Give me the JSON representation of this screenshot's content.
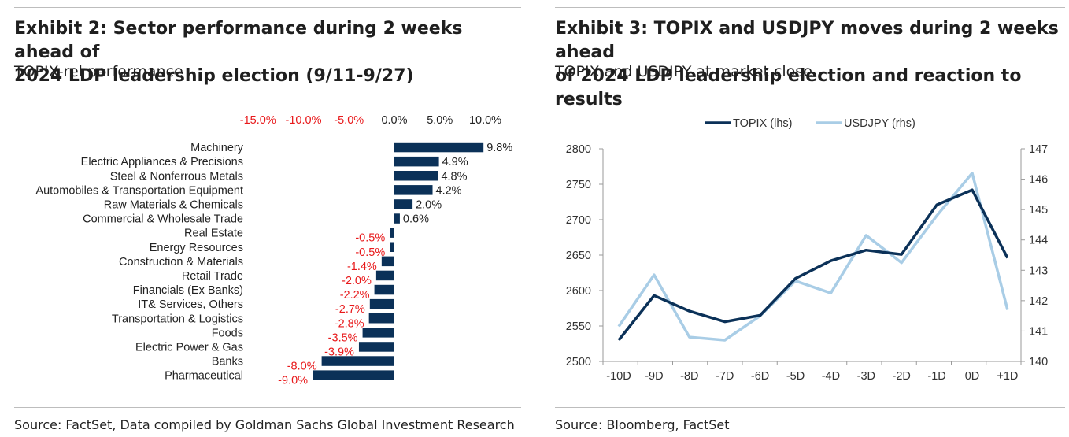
{
  "left": {
    "title_line1": "Exhibit 2: Sector performance during 2 weeks ahead of",
    "title_line2": "2024 LDP leadership election (9/11-9/27)",
    "subtitle": "TOPIX-rel performance",
    "source": "Source: FactSet, Data compiled by Goldman Sachs Global Investment Research"
  },
  "right": {
    "title_line1": "Exhibit 3: TOPIX and USDJPY moves during 2 weeks ahead",
    "title_line2": "of 2024 LDP leadership election and reaction to results",
    "subtitle": "TOPIX and USDJPY at market close",
    "source": "Source: Bloomberg, FactSet"
  },
  "colors": {
    "navy": "#0b3158",
    "light_blue": "#a9cde6",
    "negative_label": "#e8191b"
  },
  "chart_data": [
    {
      "type": "bar",
      "orientation": "horizontal",
      "title": "Exhibit 2: Sector performance during 2 weeks ahead of 2024 LDP leadership election (9/11-9/27)",
      "subtitle": "TOPIX-rel performance",
      "xlim": [
        -15,
        10
      ],
      "xticks": [
        -15,
        -10,
        -5,
        0,
        5,
        10
      ],
      "xtick_labels": [
        "-15.0%",
        "-10.0%",
        "-5.0%",
        "0.0%",
        "5.0%",
        "10.0%"
      ],
      "categories": [
        "Machinery",
        "Electric Appliances & Precisions",
        "Steel & Nonferrous Metals",
        "Automobiles & Transportation Equipment",
        "Raw Materials & Chemicals",
        "Commercial & Wholesale Trade",
        "Real Estate",
        "Energy Resources",
        "Construction & Materials",
        "Retail Trade",
        "Financials (Ex Banks)",
        "IT& Services, Others",
        "Transportation & Logistics",
        "Foods",
        "Electric Power & Gas",
        "Banks",
        "Pharmaceutical"
      ],
      "values": [
        9.8,
        4.9,
        4.8,
        4.2,
        2.0,
        0.6,
        -0.5,
        -0.5,
        -1.4,
        -2.0,
        -2.2,
        -2.7,
        -2.8,
        -3.5,
        -3.9,
        -8.0,
        -9.0
      ],
      "value_labels": [
        "9.8%",
        "4.9%",
        "4.8%",
        "4.2%",
        "2.0%",
        "0.6%",
        "-0.5%",
        "-0.5%",
        "-1.4%",
        "-2.0%",
        "-2.2%",
        "-2.7%",
        "-2.8%",
        "-3.5%",
        "-3.9%",
        "-8.0%",
        "-9.0%"
      ]
    },
    {
      "type": "line",
      "title": "Exhibit 3: TOPIX and USDJPY moves during 2 weeks ahead of 2024 LDP leadership election and reaction to results",
      "subtitle": "TOPIX and USDJPY at market close",
      "x": [
        "-10D",
        "-9D",
        "-8D",
        "-7D",
        "-6D",
        "-5D",
        "-4D",
        "-3D",
        "-2D",
        "-1D",
        "0D",
        "+1D"
      ],
      "series": [
        {
          "name": "TOPIX (lhs)",
          "axis": "left",
          "values": [
            2530,
            2593,
            2571,
            2556,
            2565,
            2617,
            2642,
            2657,
            2651,
            2721,
            2742,
            2646
          ]
        },
        {
          "name": "USDJPY (rhs)",
          "axis": "right",
          "values": [
            141.15,
            142.85,
            140.8,
            140.7,
            141.5,
            142.65,
            142.25,
            144.15,
            143.25,
            144.8,
            146.2,
            141.7
          ]
        }
      ],
      "ylim_left": [
        2500,
        2800
      ],
      "yticks_left": [
        2500,
        2550,
        2600,
        2650,
        2700,
        2750,
        2800
      ],
      "ylim_right": [
        140,
        147
      ],
      "yticks_right": [
        140,
        141,
        142,
        143,
        144,
        145,
        146,
        147
      ],
      "legend_position": "top-center",
      "grid": false
    }
  ]
}
